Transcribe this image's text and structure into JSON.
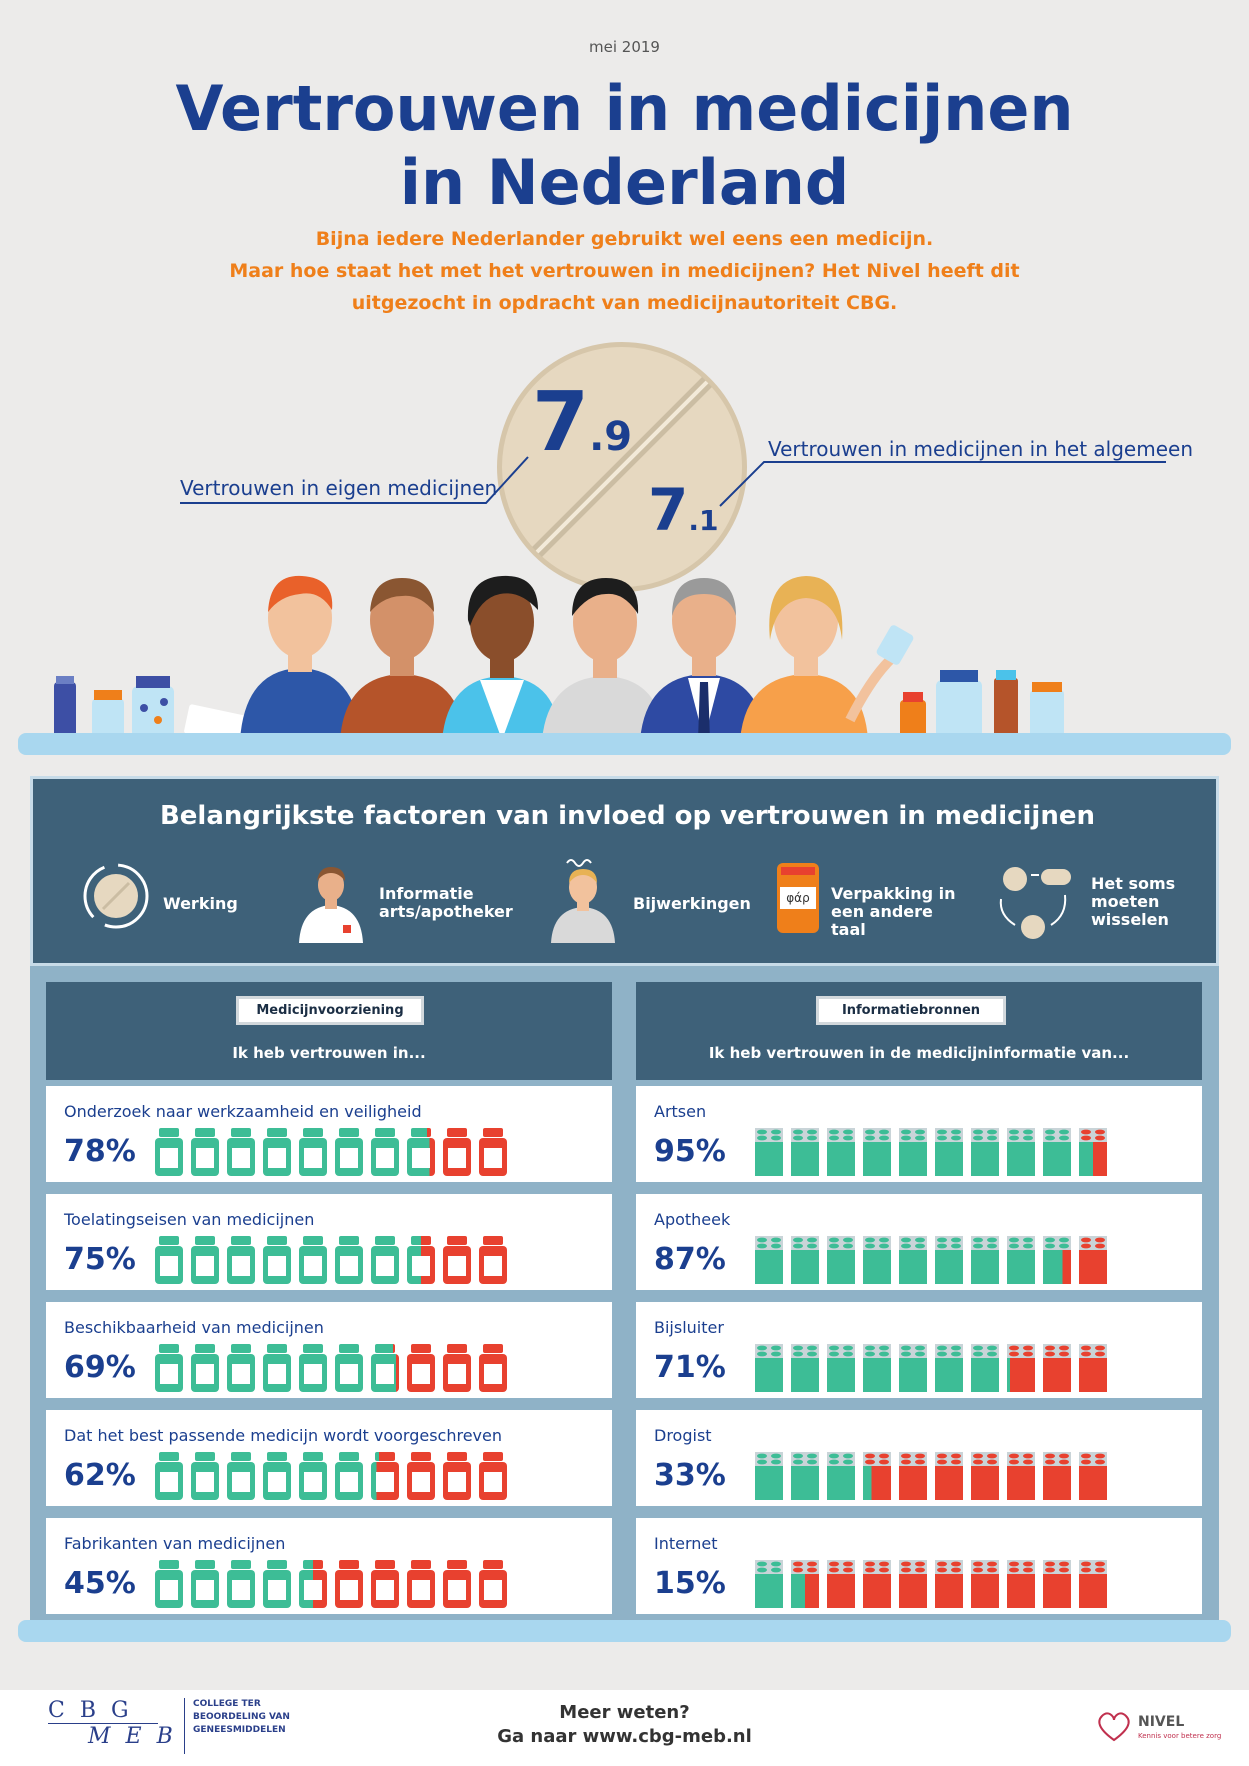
{
  "date": "mei 2019",
  "title_line1": "Vertrouwen in medicijnen",
  "title_line2": "in Nederland",
  "intro": [
    "Bijna iedere Nederlander gebruikt wel eens een medicijn.",
    "Maar hoe staat het met het vertrouwen in medicijnen? Het Nivel heeft dit",
    "uitgezocht in opdracht van medicijnautoriteit CBG."
  ],
  "scores": {
    "own": {
      "label": "Vertrouwen in eigen medicijnen",
      "int": "7",
      "dec": ".9"
    },
    "general": {
      "label": "Vertrouwen in medicijnen in het algemeen",
      "int": "7",
      "dec": ".1"
    }
  },
  "factors": {
    "title": "Belangrijkste factoren van invloed op vertrouwen in medicijnen",
    "items": [
      {
        "label": "Werking",
        "icon": "pill-cycle-icon"
      },
      {
        "label": "Informatie arts/apotheker",
        "icon": "doctor-icon"
      },
      {
        "label": "Bijwerkingen",
        "icon": "dizzy-person-icon"
      },
      {
        "label": "Verpakking in een andere taal",
        "icon": "foreign-package-icon",
        "icon_text": "φάρ"
      },
      {
        "label": "Het soms moeten wisselen",
        "icon": "switch-pills-icon"
      }
    ]
  },
  "left": {
    "tag": "Medicijnvoorziening",
    "subtitle": "Ik heb vertrouwen in...",
    "rows": [
      {
        "label": "Onderzoek naar werkzaamheid en veiligheid",
        "pct": "78%",
        "value": 78
      },
      {
        "label": "Toelatingseisen van medicijnen",
        "pct": "75%",
        "value": 75
      },
      {
        "label": "Beschikbaarheid van medicijnen",
        "pct": "69%",
        "value": 69
      },
      {
        "label": "Dat het best passende medicijn wordt voorgeschreven",
        "pct": "62%",
        "value": 62
      },
      {
        "label": "Fabrikanten van medicijnen",
        "pct": "45%",
        "value": 45
      }
    ]
  },
  "right": {
    "tag": "Informatiebronnen",
    "subtitle": "Ik heb vertrouwen in de medicijninformatie van...",
    "rows": [
      {
        "label": "Artsen",
        "pct": "95%",
        "value": 95
      },
      {
        "label": "Apotheek",
        "pct": "87%",
        "value": 87
      },
      {
        "label": "Bijsluiter",
        "pct": "71%",
        "value": 71
      },
      {
        "label": "Drogist",
        "pct": "33%",
        "value": 33
      },
      {
        "label": "Internet",
        "pct": "15%",
        "value": 15
      }
    ]
  },
  "footer": {
    "cbg_logo_top": "C B G",
    "cbg_logo_bottom": "M E B",
    "cbg_name": [
      "COLLEGE TER",
      "BEOORDELING VAN",
      "GENEESMIDDELEN"
    ],
    "more_1": "Meer weten?",
    "more_2": "Ga naar www.cbg-meb.nl",
    "nivel": "NIVEL",
    "nivel_tagline": "Kennis voor betere zorg"
  },
  "colors": {
    "green": "#3dbd96",
    "red": "#e8412f",
    "navy": "#1b3f8f",
    "orange": "#ef7f1a",
    "panel": "#3e6179"
  }
}
